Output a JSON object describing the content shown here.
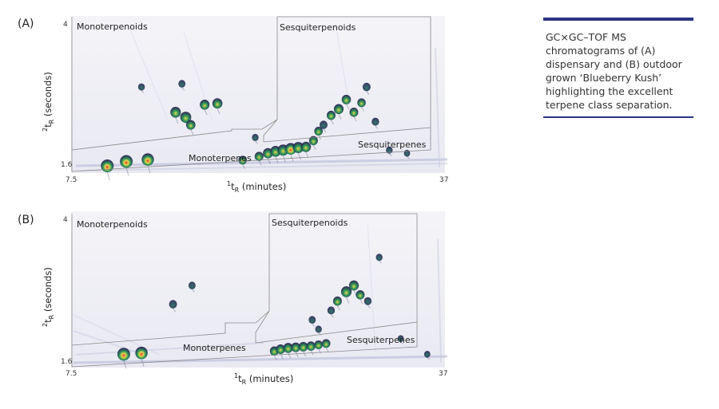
{
  "caption": "GC×GC–TOF MS chromatograms of (A) dispensary and (B) outdoor grown ‘Blueberry Kush’ highlighting the excellent terpene class separation.",
  "colors": {
    "caption_rule": "#2b3583",
    "background_cool": "#f2f2f7",
    "baseline_streak": "#b8bcd6",
    "peak_low": "#1d1c4a",
    "peak_mid": "#2f9a5a",
    "peak_high": "#e8d64a",
    "peak_apex": "#e0322e",
    "region_border": "#8a8a8a"
  },
  "chart_data": [
    {
      "type": "heatmap",
      "panel": "(A)",
      "xlabel_main": "t",
      "xlabel_sup": "1",
      "xlabel_sub": "R",
      "xlabel_unit": " (minutes)",
      "ylabel_sup": "2",
      "ylabel_main": "t",
      "ylabel_sub": "R",
      "ylabel_unit": " (seconds)",
      "xlim": [
        7.5,
        37
      ],
      "ylim": [
        1.6,
        4
      ],
      "xticks": [
        "7.5",
        "37"
      ],
      "yticks": [
        "1.6",
        "4"
      ],
      "regions": [
        "Monoterpenoids",
        "Sesquiterpenoids",
        "Monoterpenes",
        "Sesquiterpenes"
      ],
      "peaks": [
        {
          "x": 10.3,
          "y": 1.65,
          "i": 1.0
        },
        {
          "x": 11.8,
          "y": 1.72,
          "i": 1.0
        },
        {
          "x": 13.5,
          "y": 1.75,
          "i": 0.95
        },
        {
          "x": 15.7,
          "y": 2.5,
          "i": 0.75
        },
        {
          "x": 16.5,
          "y": 2.42,
          "i": 0.8
        },
        {
          "x": 16.9,
          "y": 2.3,
          "i": 0.6
        },
        {
          "x": 18.0,
          "y": 2.62,
          "i": 0.65
        },
        {
          "x": 19.0,
          "y": 2.64,
          "i": 0.7
        },
        {
          "x": 13.0,
          "y": 2.9,
          "i": 0.3
        },
        {
          "x": 16.2,
          "y": 2.95,
          "i": 0.35
        },
        {
          "x": 21.0,
          "y": 1.74,
          "i": 0.5
        },
        {
          "x": 22.3,
          "y": 1.8,
          "i": 0.55
        },
        {
          "x": 23.0,
          "y": 1.85,
          "i": 0.7
        },
        {
          "x": 23.6,
          "y": 1.88,
          "i": 0.75
        },
        {
          "x": 24.2,
          "y": 1.9,
          "i": 0.8
        },
        {
          "x": 24.8,
          "y": 1.92,
          "i": 0.85
        },
        {
          "x": 25.4,
          "y": 1.94,
          "i": 0.8
        },
        {
          "x": 26.0,
          "y": 1.95,
          "i": 0.7
        },
        {
          "x": 26.6,
          "y": 2.05,
          "i": 0.55
        },
        {
          "x": 27.0,
          "y": 2.2,
          "i": 0.5
        },
        {
          "x": 28.0,
          "y": 2.45,
          "i": 0.55
        },
        {
          "x": 28.6,
          "y": 2.55,
          "i": 0.65
        },
        {
          "x": 29.2,
          "y": 2.7,
          "i": 0.6
        },
        {
          "x": 29.8,
          "y": 2.5,
          "i": 0.55
        },
        {
          "x": 30.4,
          "y": 2.65,
          "i": 0.5
        },
        {
          "x": 30.8,
          "y": 2.9,
          "i": 0.45
        },
        {
          "x": 31.5,
          "y": 2.35,
          "i": 0.4
        },
        {
          "x": 27.4,
          "y": 2.3,
          "i": 0.45
        },
        {
          "x": 32.6,
          "y": 1.9,
          "i": 0.3
        },
        {
          "x": 34.0,
          "y": 1.85,
          "i": 0.25
        },
        {
          "x": 22.0,
          "y": 2.1,
          "i": 0.3
        }
      ]
    },
    {
      "type": "heatmap",
      "panel": "(B)",
      "xlabel_main": "t",
      "xlabel_sup": "1",
      "xlabel_sub": "R",
      "xlabel_unit": " (minutes)",
      "ylabel_sup": "2",
      "ylabel_main": "t",
      "ylabel_sub": "R",
      "ylabel_unit": " (seconds)",
      "xlim": [
        7.5,
        37
      ],
      "ylim": [
        1.6,
        4
      ],
      "xticks": [
        "7.5",
        "37"
      ],
      "yticks": [
        "1.6",
        "4"
      ],
      "regions": [
        "Monoterpenoids",
        "Sesquiterpenoids",
        "Monoterpenes",
        "Sesquiterpenes"
      ],
      "peaks": [
        {
          "x": 11.6,
          "y": 1.75,
          "i": 1.0
        },
        {
          "x": 13.0,
          "y": 1.77,
          "i": 0.95
        },
        {
          "x": 15.5,
          "y": 2.55,
          "i": 0.45
        },
        {
          "x": 17.0,
          "y": 2.85,
          "i": 0.35
        },
        {
          "x": 23.5,
          "y": 1.8,
          "i": 0.55
        },
        {
          "x": 24.0,
          "y": 1.83,
          "i": 0.6
        },
        {
          "x": 24.6,
          "y": 1.85,
          "i": 0.65
        },
        {
          "x": 25.2,
          "y": 1.86,
          "i": 0.6
        },
        {
          "x": 25.8,
          "y": 1.87,
          "i": 0.6
        },
        {
          "x": 26.4,
          "y": 1.88,
          "i": 0.55
        },
        {
          "x": 27.0,
          "y": 1.9,
          "i": 0.5
        },
        {
          "x": 27.6,
          "y": 1.92,
          "i": 0.5
        },
        {
          "x": 28.5,
          "y": 2.6,
          "i": 0.55
        },
        {
          "x": 29.2,
          "y": 2.75,
          "i": 0.75
        },
        {
          "x": 29.8,
          "y": 2.85,
          "i": 0.65
        },
        {
          "x": 30.3,
          "y": 2.7,
          "i": 0.55
        },
        {
          "x": 28.0,
          "y": 2.45,
          "i": 0.4
        },
        {
          "x": 30.9,
          "y": 2.6,
          "i": 0.4
        },
        {
          "x": 26.5,
          "y": 2.3,
          "i": 0.35
        },
        {
          "x": 27.0,
          "y": 2.15,
          "i": 0.3
        },
        {
          "x": 31.8,
          "y": 3.3,
          "i": 0.3
        },
        {
          "x": 33.5,
          "y": 2.0,
          "i": 0.25
        },
        {
          "x": 35.6,
          "y": 1.75,
          "i": 0.25
        }
      ]
    }
  ]
}
